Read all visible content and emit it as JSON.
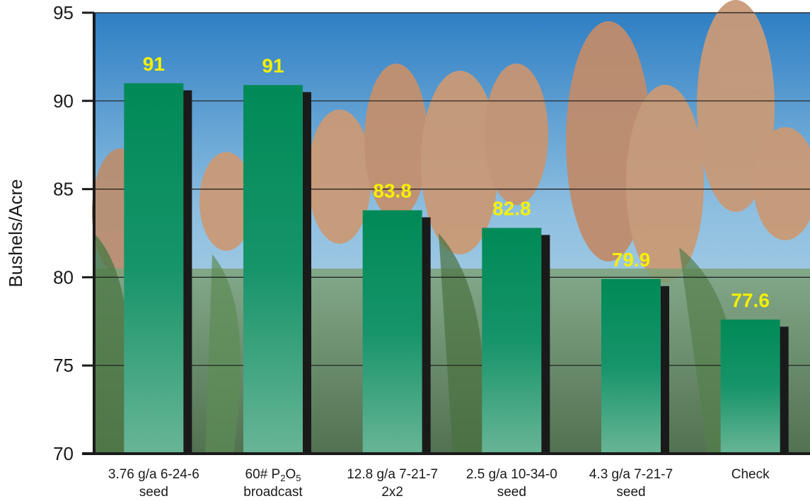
{
  "chart_data": {
    "type": "bar",
    "title": "",
    "ylabel": "Bushels/Acre",
    "xlabel": "",
    "ylim": [
      70,
      95
    ],
    "yticks": [
      70,
      75,
      80,
      85,
      90,
      95
    ],
    "grid": true,
    "categories": [
      [
        "3.76 g/a 6-24-6",
        "seed"
      ],
      [
        "60# P2O5",
        "broadcast"
      ],
      [
        "12.8 g/a 7-21-7",
        "2x2"
      ],
      [
        "2.5 g/a 10-34-0",
        "seed"
      ],
      [
        "4.3 g/a 7-21-7",
        "seed"
      ],
      [
        "Check"
      ]
    ],
    "values": [
      91,
      90.9,
      83.8,
      82.8,
      79.9,
      77.6
    ],
    "data_labels": [
      "91",
      "91",
      "83.8",
      "82.8",
      "79.9",
      "77.6"
    ],
    "colors": {
      "bar_top": "#008a57",
      "bar_bottom": "#66b496",
      "bar_shadow": "#1a1a1a",
      "data_label": "#f5f000",
      "axis": "#1a1a1a",
      "sky_top": "#2f7fc4",
      "sky_bottom": "#b8d7e8",
      "crop": "#c99a76",
      "foliage": "#5e8a52"
    }
  }
}
